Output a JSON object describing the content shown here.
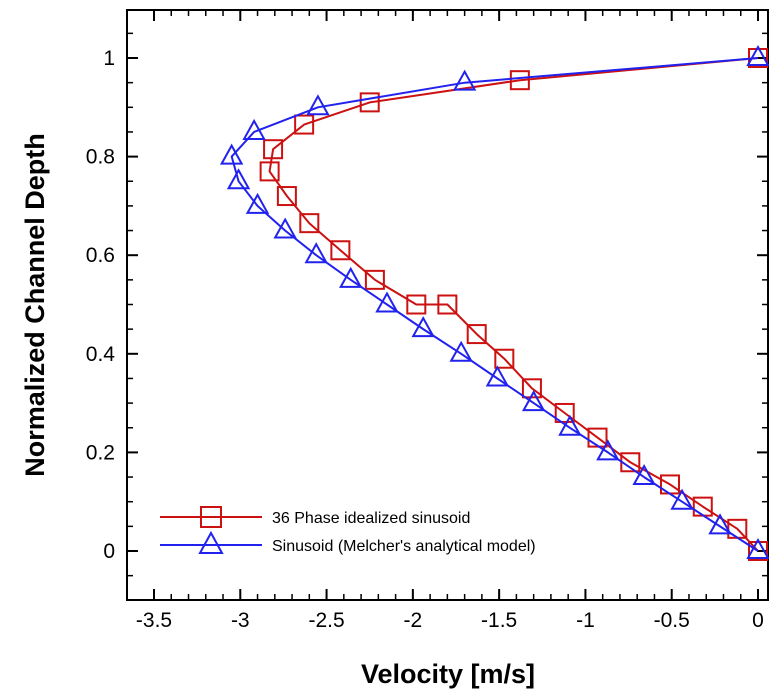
{
  "chart_data": {
    "type": "line",
    "xlabel": "Velocity [m/s]",
    "ylabel": "Normalized Channel Depth",
    "xlim": [
      -3.5,
      0.0
    ],
    "ylim": [
      -0.1,
      1.1
    ],
    "xticks": [
      -3.5,
      -3,
      -2.5,
      -2,
      -1.5,
      -1,
      -0.5,
      0
    ],
    "xtick_labels": [
      "-3.5",
      "-3",
      "-2.5",
      "-2",
      "-1.5",
      "-1",
      "-0.5",
      "0"
    ],
    "yticks": [
      0,
      0.2,
      0.4,
      0.6,
      0.8,
      1
    ],
    "ytick_labels": [
      "0",
      "0.2",
      "0.4",
      "0.6",
      "0.8",
      "1"
    ],
    "grid": false,
    "legend_position": "bottom-left",
    "series": [
      {
        "name": "36 Phase idealized sinusoid",
        "color": "#cc1111",
        "marker": "square",
        "points": [
          [
            0.0,
            0.0
          ],
          [
            -0.12,
            0.045
          ],
          [
            -0.32,
            0.09
          ],
          [
            -0.51,
            0.135
          ],
          [
            -0.74,
            0.18
          ],
          [
            -0.93,
            0.23
          ],
          [
            -1.12,
            0.28
          ],
          [
            -1.31,
            0.33
          ],
          [
            -1.47,
            0.39
          ],
          [
            -1.63,
            0.44
          ],
          [
            -1.8,
            0.5
          ],
          [
            -1.98,
            0.5
          ],
          [
            -2.22,
            0.55
          ],
          [
            -2.42,
            0.61
          ],
          [
            -2.6,
            0.665
          ],
          [
            -2.73,
            0.72
          ],
          [
            -2.83,
            0.77
          ],
          [
            -2.81,
            0.815
          ],
          [
            -2.63,
            0.865
          ],
          [
            -2.25,
            0.91
          ],
          [
            -1.38,
            0.955
          ],
          [
            0.0,
            1.0
          ]
        ]
      },
      {
        "name": "Sinusoid (Melcher's analytical model)",
        "color": "#2222ee",
        "marker": "triangle",
        "points": [
          [
            0.0,
            0.0
          ],
          [
            -0.22,
            0.05
          ],
          [
            -0.44,
            0.1
          ],
          [
            -0.66,
            0.15
          ],
          [
            -0.87,
            0.2
          ],
          [
            -1.09,
            0.25
          ],
          [
            -1.3,
            0.3
          ],
          [
            -1.51,
            0.35
          ],
          [
            -1.72,
            0.4
          ],
          [
            -1.94,
            0.45
          ],
          [
            -2.15,
            0.5
          ],
          [
            -2.36,
            0.55
          ],
          [
            -2.56,
            0.6
          ],
          [
            -2.74,
            0.65
          ],
          [
            -2.9,
            0.7
          ],
          [
            -3.01,
            0.75
          ],
          [
            -3.05,
            0.8
          ],
          [
            -2.92,
            0.85
          ],
          [
            -2.55,
            0.9
          ],
          [
            -1.7,
            0.95
          ],
          [
            0.0,
            1.0
          ]
        ]
      }
    ]
  }
}
